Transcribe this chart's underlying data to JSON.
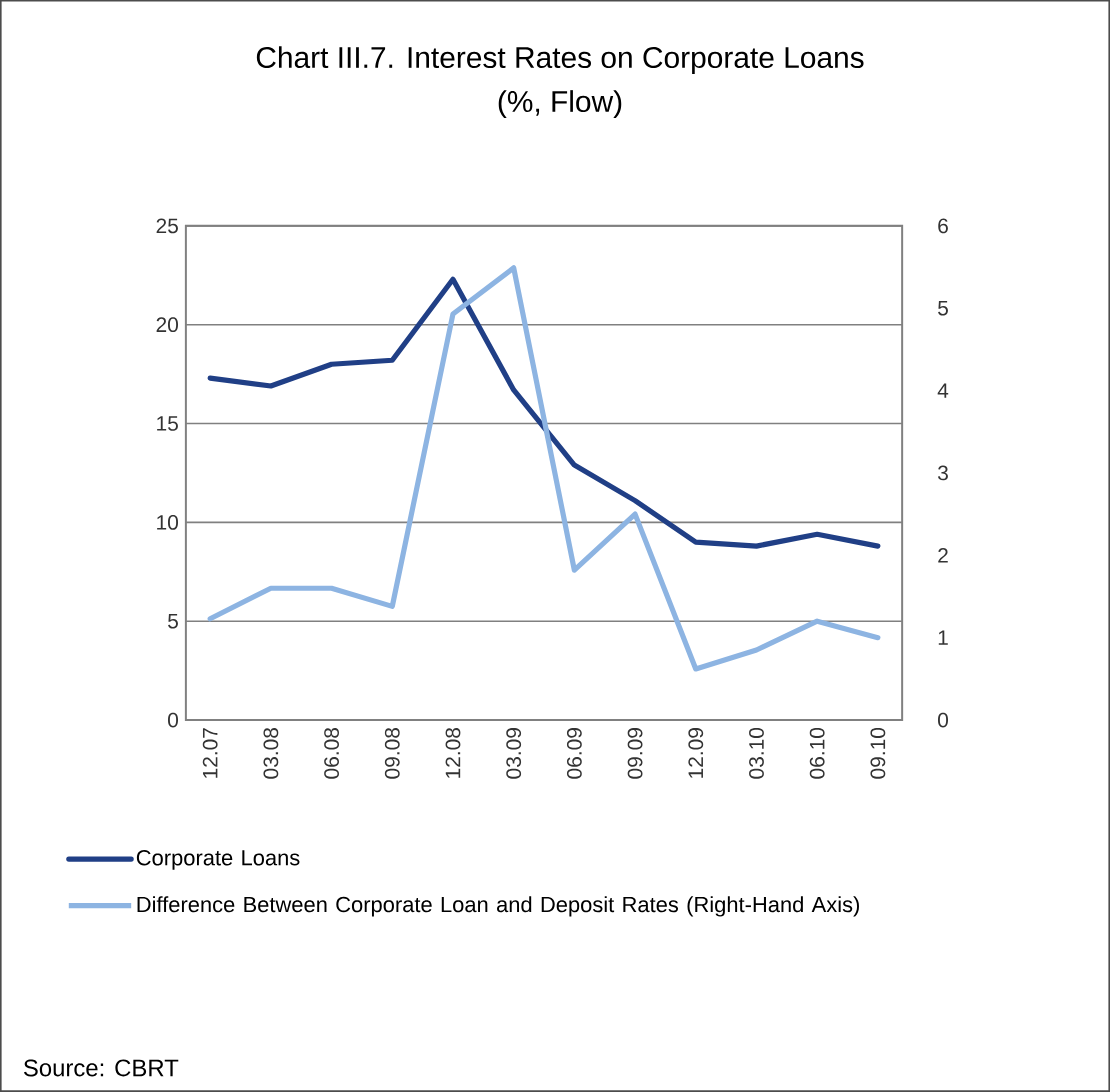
{
  "chart_data": {
    "type": "line",
    "title": "Chart III.7. Interest Rates on Corporate Loans",
    "subtitle": "(%, Flow)",
    "categories": [
      "12.07",
      "03.08",
      "06.08",
      "09.08",
      "12.08",
      "03.09",
      "06.09",
      "09.09",
      "12.09",
      "03.10",
      "06.10",
      "09.10"
    ],
    "series": [
      {
        "name": "Corporate Loans",
        "color": "#203f86",
        "values": [
          17.3,
          16.9,
          18.0,
          18.2,
          22.3,
          16.7,
          12.9,
          11.1,
          9.0,
          8.8,
          9.4,
          8.8
        ]
      },
      {
        "name": "Difference Between Corporate Loan and Deposit Rates (Right-Hand Axis)",
        "color": "#8db4e2",
        "axis": "y2",
        "values": [
          1.23,
          1.6,
          1.6,
          1.38,
          4.93,
          5.49,
          1.82,
          2.5,
          0.62,
          0.85,
          1.2,
          1.0
        ]
      }
    ],
    "ylim": [
      0,
      25
    ],
    "yticks": [
      0,
      5,
      10,
      15,
      20,
      25
    ],
    "y2lim": [
      0,
      6
    ],
    "y2ticks": [
      0,
      1,
      2,
      3,
      4,
      5,
      6
    ],
    "grid": "y",
    "legend": "bottom",
    "annotations": [
      "Source: CBRT"
    ]
  }
}
